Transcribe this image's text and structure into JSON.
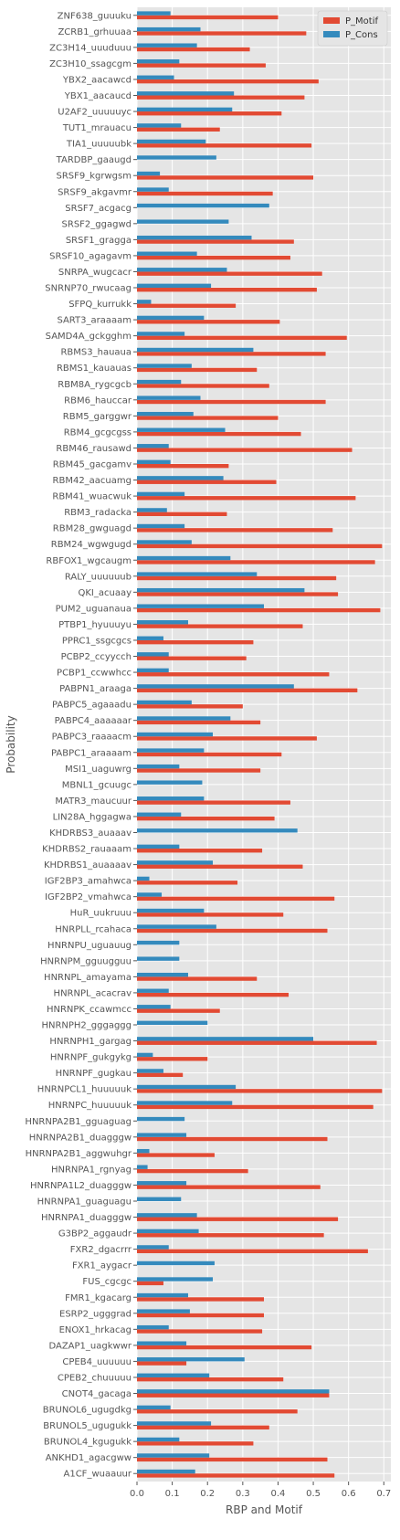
{
  "chart_data": {
    "type": "bar",
    "orientation": "horizontal",
    "title": "",
    "xlabel": "RBP and Motif",
    "ylabel": "Probability",
    "xlim": [
      0,
      0.72
    ],
    "xticks": [
      "0.0",
      "0.1",
      "0.2",
      "0.3",
      "0.4",
      "0.5",
      "0.6",
      "0.7"
    ],
    "grid": true,
    "legend_position": "top-right",
    "style": "ggplot",
    "colors": {
      "P_Motif": "#E24A33",
      "P_Cons": "#348ABD",
      "background": "#E5E5E5",
      "grid": "#ffffff"
    },
    "categories": [
      "ZNF638_guuuku",
      "ZCRB1_grhuuaa",
      "ZC3H14_uuuduuu",
      "ZC3H10_ssagcgm",
      "YBX2_aacawcd",
      "YBX1_aacaucd",
      "U2AF2_uuuuuyc",
      "TUT1_mrauacu",
      "TIA1_uuuuubk",
      "TARDBP_gaaugd",
      "SRSF9_kgrwgsm",
      "SRSF9_akgavmr",
      "SRSF7_acgacg",
      "SRSF2_ggagwd",
      "SRSF1_gragga",
      "SRSF10_agagavm",
      "SNRPA_wugcacr",
      "SNRNP70_rwucaag",
      "SFPQ_kurrukk",
      "SART3_araaaam",
      "SAMD4A_gckgghm",
      "RBMS3_hauaua",
      "RBMS1_kauauas",
      "RBM8A_rygcgcb",
      "RBM6_hauccar",
      "RBM5_garggwr",
      "RBM4_gcgcgss",
      "RBM46_rausawd",
      "RBM45_gacgamv",
      "RBM42_aacuamg",
      "RBM41_wuacwuk",
      "RBM3_radacka",
      "RBM28_gwguagd",
      "RBM24_wgwgugd",
      "RBFOX1_wgcaugm",
      "RALY_uuuuuub",
      "QKI_acuaay",
      "PUM2_uguanaua",
      "PTBP1_hyuuuyu",
      "PPRC1_ssgcgcs",
      "PCBP2_ccyycch",
      "PCBP1_ccwwhcc",
      "PABPN1_araaga",
      "PABPC5_agaaadu",
      "PABPC4_aaaaaar",
      "PABPC3_raaaacm",
      "PABPC1_araaaam",
      "MSI1_uaguwrg",
      "MBNL1_gcuugc",
      "MATR3_maucuur",
      "LIN28A_hggagwa",
      "KHDRBS3_auaaav",
      "KHDRBS2_rauaaam",
      "KHDRBS1_auaaaav",
      "IGF2BP3_amahwca",
      "IGF2BP2_vmahwca",
      "HuR_uukruuu",
      "HNRPLL_rcahaca",
      "HNRNPU_uguauug",
      "HNRNPM_gguugguu",
      "HNRNPL_amayama",
      "HNRNPL_acacrav",
      "HNRNPK_ccawmcc",
      "HNRNPH2_gggaggg",
      "HNRNPH1_gargag",
      "HNRNPF_gukgykg",
      "HNRNPF_gugkau",
      "HNRNPCL1_huuuuuk",
      "HNRNPC_huuuuuk",
      "HNRNPA2B1_gguaguag",
      "HNRNPA2B1_duagggw",
      "HNRNPA2B1_aggwuhgr",
      "HNRNPA1_rgnyag",
      "HNRNPA1L2_duagggw",
      "HNRNPA1_guaguagu",
      "HNRNPA1_duagggw",
      "G3BP2_aggaudr",
      "FXR2_dgacrrr",
      "FXR1_aygacr",
      "FUS_cgcgc",
      "FMR1_kgacarg",
      "ESRP2_ugggrad",
      "ENOX1_hrkacag",
      "DAZAP1_uagkwwr",
      "CPEB4_uuuuuu",
      "CPEB2_chuuuuu",
      "CNOT4_gacaga",
      "BRUNOL6_ugugdkg",
      "BRUNOL5_ugugukk",
      "BRUNOL4_kgugukk",
      "ANKHD1_agacgww",
      "A1CF_wuaauur"
    ],
    "series": [
      {
        "name": "P_Motif",
        "values": [
          0.4,
          0.48,
          0.32,
          0.365,
          0.515,
          0.475,
          0.41,
          0.235,
          0.495,
          0,
          0.5,
          0.385,
          0,
          0,
          0.445,
          0.435,
          0.525,
          0.51,
          0.28,
          0.405,
          0.595,
          0.535,
          0.34,
          0.375,
          0.535,
          0.4,
          0.465,
          0.61,
          0.26,
          0.395,
          0.62,
          0.255,
          0.555,
          0.695,
          0.675,
          0.565,
          0.57,
          0.69,
          0.47,
          0.33,
          0.31,
          0.545,
          0.625,
          0.3,
          0.35,
          0.51,
          0.41,
          0.35,
          0,
          0.435,
          0.39,
          0,
          0.355,
          0.47,
          0.285,
          0.56,
          0.415,
          0.54,
          0,
          0,
          0.34,
          0.43,
          0.235,
          0,
          0.68,
          0.2,
          0.13,
          0.695,
          0.67,
          0,
          0.54,
          0.22,
          0.315,
          0.52,
          0,
          0.57,
          0.53,
          0.655,
          0,
          0.075,
          0.36,
          0.36,
          0.355,
          0.495,
          0.14,
          0.415,
          0.545,
          0.455,
          0.375,
          0.33,
          0.54,
          0.56
        ]
      },
      {
        "name": "P_Cons",
        "values": [
          0.095,
          0.18,
          0.17,
          0.12,
          0.105,
          0.275,
          0.27,
          0.125,
          0.195,
          0.225,
          0.065,
          0.09,
          0.375,
          0.26,
          0.325,
          0.17,
          0.255,
          0.21,
          0.04,
          0.19,
          0.135,
          0.33,
          0.155,
          0.125,
          0.18,
          0.16,
          0.25,
          0.09,
          0.095,
          0.245,
          0.135,
          0.085,
          0.135,
          0.155,
          0.265,
          0.34,
          0.475,
          0.36,
          0.145,
          0.075,
          0.09,
          0.09,
          0.445,
          0.155,
          0.265,
          0.215,
          0.19,
          0.12,
          0.185,
          0.19,
          0.125,
          0.455,
          0.12,
          0.215,
          0.035,
          0.07,
          0.19,
          0.225,
          0.12,
          0.12,
          0.145,
          0.09,
          0.095,
          0.2,
          0.5,
          0.045,
          0.075,
          0.28,
          0.27,
          0.135,
          0.14,
          0.035,
          0.03,
          0.14,
          0.125,
          0.17,
          0.175,
          0.09,
          0.22,
          0.215,
          0.145,
          0.15,
          0.09,
          0.14,
          0.305,
          0.205,
          0.545,
          0.095,
          0.21,
          0.12,
          0.205,
          0.165
        ]
      }
    ]
  }
}
